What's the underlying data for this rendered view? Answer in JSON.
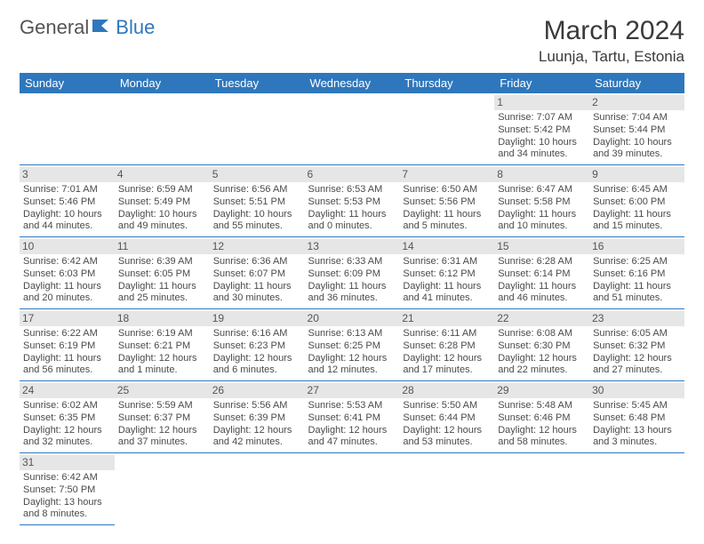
{
  "brand": {
    "text1": "General",
    "text2": "Blue"
  },
  "title": "March 2024",
  "location": "Luunja, Tartu, Estonia",
  "colors": {
    "header_bg": "#2f77bc",
    "header_text": "#ffffff",
    "daynum_bg": "#e6e6e6",
    "border": "#2f77bc",
    "body_text": "#4a4a4a"
  },
  "day_headers": [
    "Sunday",
    "Monday",
    "Tuesday",
    "Wednesday",
    "Thursday",
    "Friday",
    "Saturday"
  ],
  "weeks": [
    [
      null,
      null,
      null,
      null,
      null,
      {
        "n": "1",
        "sr": "Sunrise: 7:07 AM",
        "ss": "Sunset: 5:42 PM",
        "dl1": "Daylight: 10 hours",
        "dl2": "and 34 minutes."
      },
      {
        "n": "2",
        "sr": "Sunrise: 7:04 AM",
        "ss": "Sunset: 5:44 PM",
        "dl1": "Daylight: 10 hours",
        "dl2": "and 39 minutes."
      }
    ],
    [
      {
        "n": "3",
        "sr": "Sunrise: 7:01 AM",
        "ss": "Sunset: 5:46 PM",
        "dl1": "Daylight: 10 hours",
        "dl2": "and 44 minutes."
      },
      {
        "n": "4",
        "sr": "Sunrise: 6:59 AM",
        "ss": "Sunset: 5:49 PM",
        "dl1": "Daylight: 10 hours",
        "dl2": "and 49 minutes."
      },
      {
        "n": "5",
        "sr": "Sunrise: 6:56 AM",
        "ss": "Sunset: 5:51 PM",
        "dl1": "Daylight: 10 hours",
        "dl2": "and 55 minutes."
      },
      {
        "n": "6",
        "sr": "Sunrise: 6:53 AM",
        "ss": "Sunset: 5:53 PM",
        "dl1": "Daylight: 11 hours",
        "dl2": "and 0 minutes."
      },
      {
        "n": "7",
        "sr": "Sunrise: 6:50 AM",
        "ss": "Sunset: 5:56 PM",
        "dl1": "Daylight: 11 hours",
        "dl2": "and 5 minutes."
      },
      {
        "n": "8",
        "sr": "Sunrise: 6:47 AM",
        "ss": "Sunset: 5:58 PM",
        "dl1": "Daylight: 11 hours",
        "dl2": "and 10 minutes."
      },
      {
        "n": "9",
        "sr": "Sunrise: 6:45 AM",
        "ss": "Sunset: 6:00 PM",
        "dl1": "Daylight: 11 hours",
        "dl2": "and 15 minutes."
      }
    ],
    [
      {
        "n": "10",
        "sr": "Sunrise: 6:42 AM",
        "ss": "Sunset: 6:03 PM",
        "dl1": "Daylight: 11 hours",
        "dl2": "and 20 minutes."
      },
      {
        "n": "11",
        "sr": "Sunrise: 6:39 AM",
        "ss": "Sunset: 6:05 PM",
        "dl1": "Daylight: 11 hours",
        "dl2": "and 25 minutes."
      },
      {
        "n": "12",
        "sr": "Sunrise: 6:36 AM",
        "ss": "Sunset: 6:07 PM",
        "dl1": "Daylight: 11 hours",
        "dl2": "and 30 minutes."
      },
      {
        "n": "13",
        "sr": "Sunrise: 6:33 AM",
        "ss": "Sunset: 6:09 PM",
        "dl1": "Daylight: 11 hours",
        "dl2": "and 36 minutes."
      },
      {
        "n": "14",
        "sr": "Sunrise: 6:31 AM",
        "ss": "Sunset: 6:12 PM",
        "dl1": "Daylight: 11 hours",
        "dl2": "and 41 minutes."
      },
      {
        "n": "15",
        "sr": "Sunrise: 6:28 AM",
        "ss": "Sunset: 6:14 PM",
        "dl1": "Daylight: 11 hours",
        "dl2": "and 46 minutes."
      },
      {
        "n": "16",
        "sr": "Sunrise: 6:25 AM",
        "ss": "Sunset: 6:16 PM",
        "dl1": "Daylight: 11 hours",
        "dl2": "and 51 minutes."
      }
    ],
    [
      {
        "n": "17",
        "sr": "Sunrise: 6:22 AM",
        "ss": "Sunset: 6:19 PM",
        "dl1": "Daylight: 11 hours",
        "dl2": "and 56 minutes."
      },
      {
        "n": "18",
        "sr": "Sunrise: 6:19 AM",
        "ss": "Sunset: 6:21 PM",
        "dl1": "Daylight: 12 hours",
        "dl2": "and 1 minute."
      },
      {
        "n": "19",
        "sr": "Sunrise: 6:16 AM",
        "ss": "Sunset: 6:23 PM",
        "dl1": "Daylight: 12 hours",
        "dl2": "and 6 minutes."
      },
      {
        "n": "20",
        "sr": "Sunrise: 6:13 AM",
        "ss": "Sunset: 6:25 PM",
        "dl1": "Daylight: 12 hours",
        "dl2": "and 12 minutes."
      },
      {
        "n": "21",
        "sr": "Sunrise: 6:11 AM",
        "ss": "Sunset: 6:28 PM",
        "dl1": "Daylight: 12 hours",
        "dl2": "and 17 minutes."
      },
      {
        "n": "22",
        "sr": "Sunrise: 6:08 AM",
        "ss": "Sunset: 6:30 PM",
        "dl1": "Daylight: 12 hours",
        "dl2": "and 22 minutes."
      },
      {
        "n": "23",
        "sr": "Sunrise: 6:05 AM",
        "ss": "Sunset: 6:32 PM",
        "dl1": "Daylight: 12 hours",
        "dl2": "and 27 minutes."
      }
    ],
    [
      {
        "n": "24",
        "sr": "Sunrise: 6:02 AM",
        "ss": "Sunset: 6:35 PM",
        "dl1": "Daylight: 12 hours",
        "dl2": "and 32 minutes."
      },
      {
        "n": "25",
        "sr": "Sunrise: 5:59 AM",
        "ss": "Sunset: 6:37 PM",
        "dl1": "Daylight: 12 hours",
        "dl2": "and 37 minutes."
      },
      {
        "n": "26",
        "sr": "Sunrise: 5:56 AM",
        "ss": "Sunset: 6:39 PM",
        "dl1": "Daylight: 12 hours",
        "dl2": "and 42 minutes."
      },
      {
        "n": "27",
        "sr": "Sunrise: 5:53 AM",
        "ss": "Sunset: 6:41 PM",
        "dl1": "Daylight: 12 hours",
        "dl2": "and 47 minutes."
      },
      {
        "n": "28",
        "sr": "Sunrise: 5:50 AM",
        "ss": "Sunset: 6:44 PM",
        "dl1": "Daylight: 12 hours",
        "dl2": "and 53 minutes."
      },
      {
        "n": "29",
        "sr": "Sunrise: 5:48 AM",
        "ss": "Sunset: 6:46 PM",
        "dl1": "Daylight: 12 hours",
        "dl2": "and 58 minutes."
      },
      {
        "n": "30",
        "sr": "Sunrise: 5:45 AM",
        "ss": "Sunset: 6:48 PM",
        "dl1": "Daylight: 13 hours",
        "dl2": "and 3 minutes."
      }
    ],
    [
      {
        "n": "31",
        "sr": "Sunrise: 6:42 AM",
        "ss": "Sunset: 7:50 PM",
        "dl1": "Daylight: 13 hours",
        "dl2": "and 8 minutes."
      },
      null,
      null,
      null,
      null,
      null,
      null
    ]
  ]
}
